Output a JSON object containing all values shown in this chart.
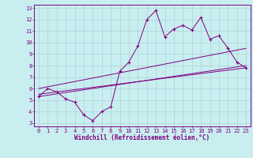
{
  "xlabel": "Windchill (Refroidissement éolien,°C)",
  "bg_color": "#c8eef0",
  "line_color": "#800080",
  "grid_color": "#b0d0d8",
  "xlim": [
    -0.5,
    23.5
  ],
  "ylim": [
    2.7,
    13.3
  ],
  "xticks": [
    0,
    1,
    2,
    3,
    4,
    5,
    6,
    7,
    8,
    9,
    10,
    11,
    12,
    13,
    14,
    15,
    16,
    17,
    18,
    19,
    20,
    21,
    22,
    23
  ],
  "yticks": [
    3,
    4,
    5,
    6,
    7,
    8,
    9,
    10,
    11,
    12,
    13
  ],
  "main_x": [
    0,
    1,
    2,
    3,
    4,
    5,
    6,
    7,
    8,
    9,
    10,
    11,
    12,
    13,
    14,
    15,
    16,
    17,
    18,
    19,
    20,
    21,
    22,
    23
  ],
  "main_y": [
    5.3,
    6.0,
    5.7,
    5.1,
    4.8,
    3.7,
    3.2,
    4.0,
    4.4,
    7.5,
    8.3,
    9.7,
    12.0,
    12.8,
    10.5,
    11.2,
    11.5,
    11.1,
    12.2,
    10.3,
    10.6,
    9.5,
    8.3,
    7.8
  ],
  "line1_x": [
    0,
    23
  ],
  "line1_y": [
    5.5,
    7.8
  ],
  "line2_x": [
    0,
    23
  ],
  "line2_y": [
    6.0,
    9.5
  ],
  "line3_x": [
    0,
    23
  ],
  "line3_y": [
    5.3,
    8.0
  ],
  "tick_fontsize": 5,
  "xlabel_fontsize": 5.5
}
